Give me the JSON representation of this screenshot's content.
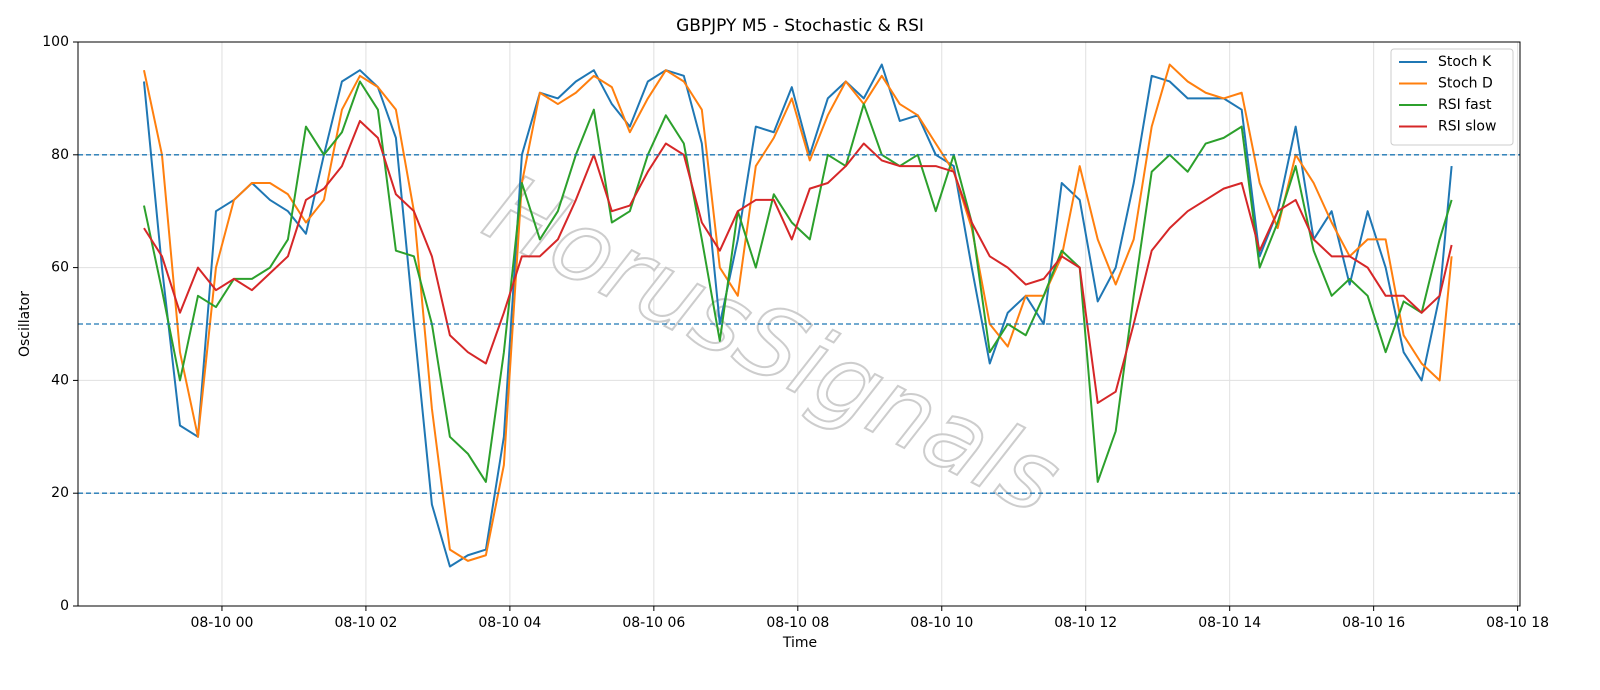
{
  "chart_data": {
    "type": "line",
    "title": "GBPJPY M5 - Stochastic & RSI",
    "xlabel": "Time",
    "ylabel": "Oscillator",
    "watermark": "HorusSignals",
    "x": [
      "08-09 22:55",
      "08-09 23:10",
      "08-09 23:25",
      "08-09 23:40",
      "08-09 23:55",
      "08-10 00:10",
      "08-10 00:25",
      "08-10 00:40",
      "08-10 00:55",
      "08-10 01:10",
      "08-10 01:25",
      "08-10 01:40",
      "08-10 01:55",
      "08-10 02:10",
      "08-10 02:25",
      "08-10 02:40",
      "08-10 02:55",
      "08-10 03:10",
      "08-10 03:25",
      "08-10 03:40",
      "08-10 03:55",
      "08-10 04:10",
      "08-10 04:25",
      "08-10 04:40",
      "08-10 04:55",
      "08-10 05:10",
      "08-10 05:25",
      "08-10 05:40",
      "08-10 05:55",
      "08-10 06:10",
      "08-10 06:25",
      "08-10 06:40",
      "08-10 06:55",
      "08-10 07:10",
      "08-10 07:25",
      "08-10 07:40",
      "08-10 07:55",
      "08-10 08:10",
      "08-10 08:25",
      "08-10 08:40",
      "08-10 08:55",
      "08-10 09:10",
      "08-10 09:25",
      "08-10 09:40",
      "08-10 09:55",
      "08-10 10:10",
      "08-10 10:25",
      "08-10 10:40",
      "08-10 10:55",
      "08-10 11:10",
      "08-10 11:25",
      "08-10 11:40",
      "08-10 11:55",
      "08-10 12:10",
      "08-10 12:25",
      "08-10 12:40",
      "08-10 12:55",
      "08-10 13:10",
      "08-10 13:25",
      "08-10 13:40",
      "08-10 13:55",
      "08-10 14:10",
      "08-10 14:25",
      "08-10 14:40",
      "08-10 14:55",
      "08-10 15:10",
      "08-10 15:25",
      "08-10 15:40",
      "08-10 15:55",
      "08-10 16:10",
      "08-10 16:25",
      "08-10 16:40",
      "08-10 16:55",
      "08-10 17:05"
    ],
    "series": [
      {
        "name": "Stoch K",
        "color": "#1f77b4",
        "values": [
          93,
          60,
          32,
          30,
          70,
          72,
          75,
          72,
          70,
          66,
          80,
          93,
          95,
          92,
          83,
          50,
          18,
          7,
          9,
          10,
          30,
          80,
          91,
          90,
          93,
          95,
          89,
          85,
          93,
          95,
          94,
          82,
          50,
          65,
          85,
          84,
          92,
          80,
          90,
          93,
          90,
          96,
          86,
          87,
          80,
          78,
          60,
          43,
          52,
          55,
          50,
          75,
          72,
          54,
          60,
          75,
          94,
          93,
          90,
          90,
          90,
          88,
          62,
          70,
          85,
          65,
          70,
          57,
          70,
          60,
          45,
          40,
          55,
          78
        ]
      },
      {
        "name": "Stoch D",
        "color": "#ff7f0e",
        "values": [
          95,
          80,
          45,
          30,
          60,
          72,
          75,
          75,
          73,
          68,
          72,
          88,
          94,
          92,
          88,
          70,
          35,
          10,
          8,
          9,
          25,
          75,
          91,
          89,
          91,
          94,
          92,
          84,
          90,
          95,
          93,
          88,
          60,
          55,
          78,
          83,
          90,
          79,
          87,
          93,
          89,
          94,
          89,
          87,
          82,
          77,
          67,
          50,
          46,
          55,
          55,
          62,
          78,
          65,
          57,
          65,
          85,
          96,
          93,
          91,
          90,
          91,
          75,
          67,
          80,
          75,
          68,
          62,
          65,
          65,
          48,
          43,
          40,
          62
        ]
      },
      {
        "name": "RSI fast",
        "color": "#2ca02c",
        "values": [
          71,
          56,
          40,
          55,
          53,
          58,
          58,
          60,
          65,
          85,
          80,
          84,
          93,
          88,
          63,
          62,
          50,
          30,
          27,
          22,
          45,
          75,
          65,
          70,
          80,
          88,
          68,
          70,
          80,
          87,
          82,
          65,
          47,
          70,
          60,
          73,
          68,
          65,
          80,
          78,
          89,
          80,
          78,
          80,
          70,
          80,
          68,
          45,
          50,
          48,
          55,
          63,
          60,
          22,
          31,
          55,
          77,
          80,
          77,
          82,
          83,
          85,
          60,
          68,
          78,
          63,
          55,
          58,
          55,
          45,
          54,
          52,
          65,
          72
        ]
      },
      {
        "name": "RSI slow",
        "color": "#d62728",
        "values": [
          67,
          62,
          52,
          60,
          56,
          58,
          56,
          59,
          62,
          72,
          74,
          78,
          86,
          83,
          73,
          70,
          62,
          48,
          45,
          43,
          52,
          62,
          62,
          65,
          72,
          80,
          70,
          71,
          77,
          82,
          80,
          68,
          63,
          70,
          72,
          72,
          65,
          74,
          75,
          78,
          82,
          79,
          78,
          78,
          78,
          77,
          68,
          62,
          60,
          57,
          58,
          62,
          60,
          36,
          38,
          50,
          63,
          67,
          70,
          72,
          74,
          75,
          63,
          70,
          72,
          65,
          62,
          62,
          60,
          55,
          55,
          52,
          55,
          64
        ]
      }
    ],
    "xlim": [
      "08-09 22:00",
      "08-10 18:02"
    ],
    "xticks": [
      "08-10 00",
      "08-10 02",
      "08-10 04",
      "08-10 06",
      "08-10 08",
      "08-10 10",
      "08-10 12",
      "08-10 14",
      "08-10 16",
      "08-10 18"
    ],
    "ylim": [
      0,
      100
    ],
    "yticks": [
      0,
      20,
      40,
      60,
      80,
      100
    ],
    "hlines": [
      20,
      50,
      80
    ],
    "hline_color": "#1f77b4",
    "grid": true,
    "legend": "upper right"
  }
}
